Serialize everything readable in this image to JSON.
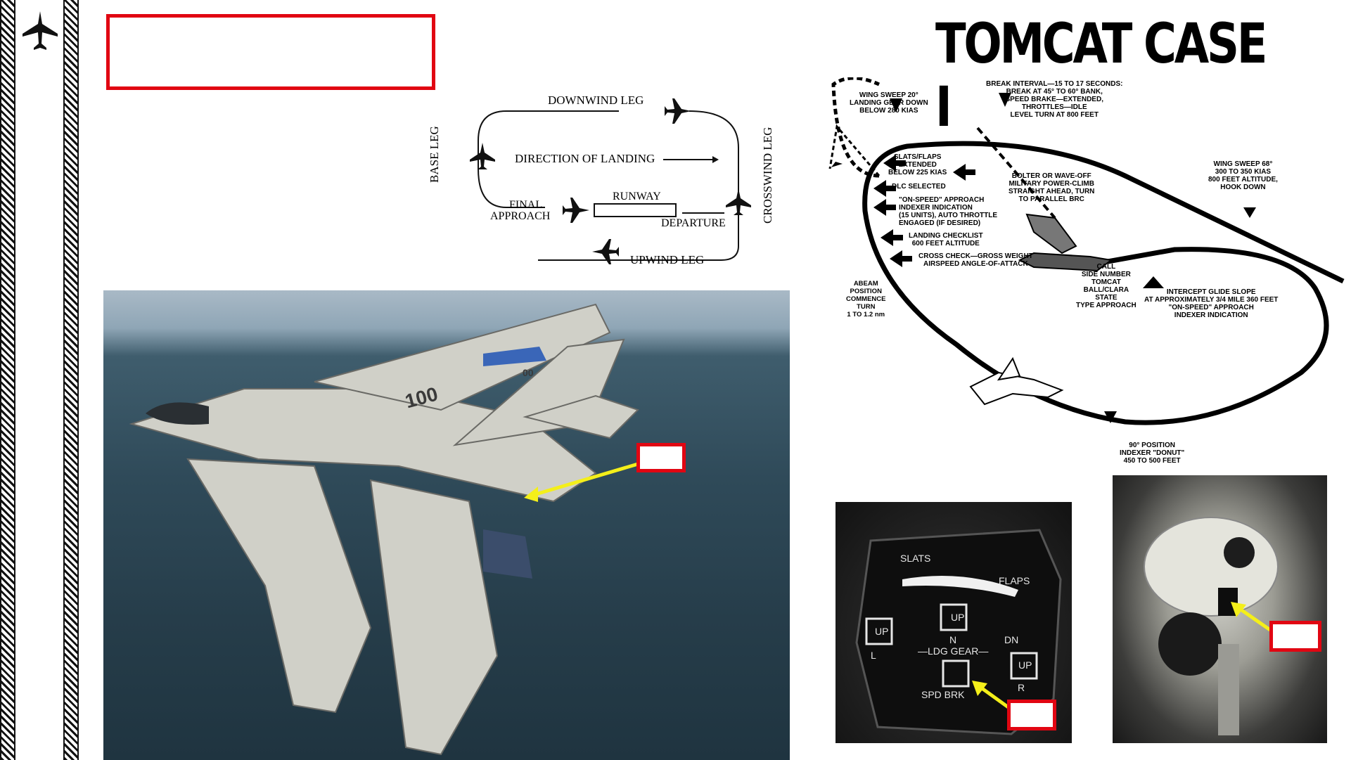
{
  "sidebar": {
    "icon": "jet-icon"
  },
  "diagram": {
    "downwind": "DOWNWIND LEG",
    "base": "BASE LEG",
    "direction": "DIRECTION OF LANDING",
    "final": "FINAL",
    "approach": "APPROACH",
    "runway": "RUNWAY",
    "departure": "DEPARTURE",
    "crosswind": "CROSSWIND LEG",
    "upwind": "UPWIND LEG"
  },
  "case1": {
    "title": "TOMCAT CASE I",
    "wing_sweep_20": "WING SWEEP 20°\nLANDING GEAR DOWN\nBELOW 280 KIAS",
    "break_interval": "BREAK INTERVAL—15 TO 17 SECONDS:\nBREAK AT 45° TO 60° BANK,\nSPEED BRAKE—EXTENDED,\nTHROTTLES—IDLE\nLEVEL TURN AT 800 FEET",
    "wing_sweep_68": "WING SWEEP 68°\n300 TO 350 KIAS\n800 FEET ALTITUDE,\nHOOK DOWN",
    "slats_flaps": "SLATS/FLAPS\nEXTENDED\nBELOW 225 KIAS",
    "bolter": "BOLTER OR WAVE-OFF\nMILITARY POWER-CLIMB\nSTRAIGHT AHEAD, TURN\nTO PARALLEL BRC",
    "dlc": "DLC SELECTED",
    "on_speed": "\"ON-SPEED\" APPROACH\nINDEXER INDICATION\n(15 UNITS), AUTO THROTTLE\nENGAGED (IF DESIRED)",
    "landing_checklist": "LANDING CHECKLIST\n600 FEET ALTITUDE",
    "cross_check": "CROSS CHECK—GROSS WEIGHT\nAIRSPEED ANGLE-OF-ATTACK",
    "abeam": "ABEAM\nPOSITION\nCOMMENCE\nTURN\n1 TO 1.2 nm",
    "call": "CALL\nSIDE NUMBER\nTOMCAT\nBALL/CLARA\nSTATE\nTYPE APPROACH",
    "intercept": "INTERCEPT GLIDE SLOPE\nAT APPROXIMATELY 3/4 MILE 360 FEET\n\"ON-SPEED\" APPROACH\nINDEXER INDICATION",
    "ninety": "90° POSITION\nINDEXER \"DONUT\"\n450 TO 500 FEET"
  },
  "photo": {
    "tail_number": "100",
    "tail_code": "00"
  },
  "indicator": {
    "slats": "SLATS",
    "flaps": "FLAPS",
    "up": "UP",
    "n": "N",
    "dn": "DN",
    "l": "L",
    "r": "R",
    "ldg_gear": "—LDG GEAR—",
    "spd_brk": "SPD BRK"
  },
  "colors": {
    "callout_red": "#e10612",
    "arrow_yellow": "#f4ef1a"
  }
}
